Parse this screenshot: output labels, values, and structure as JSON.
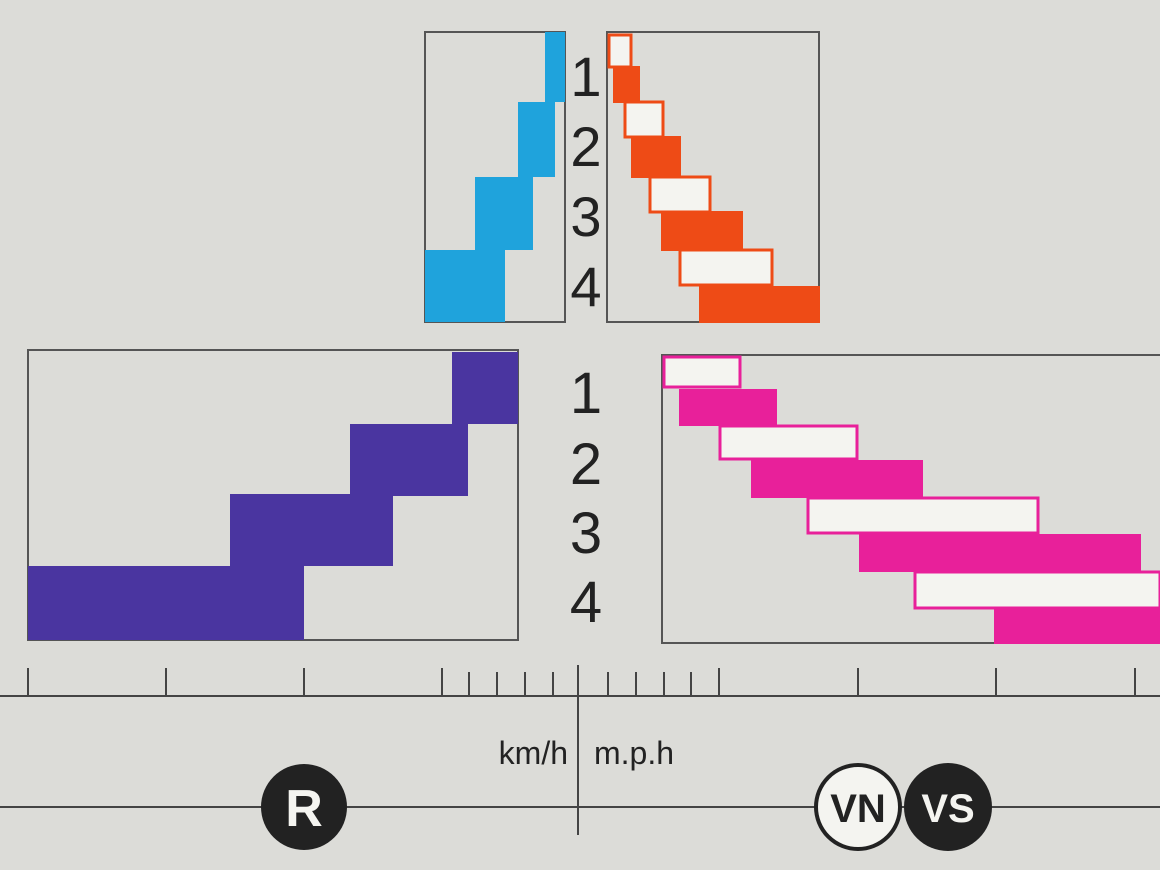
{
  "gear_labels": [
    "1",
    "2",
    "3",
    "4"
  ],
  "colors": {
    "background": "#dcdcd8",
    "frame": "#555555",
    "reverse_small": "#1fa3dc",
    "forward_small": "#ee4b16",
    "reverse_large": "#4a35a0",
    "forward_large": "#e8209a",
    "badge_dark": "#222222",
    "badge_light": "#f4f4f0"
  },
  "scale": {
    "left_unit": "km/h",
    "right_unit": "m.p.h"
  },
  "badges": {
    "reverse": "R",
    "vn": "VN",
    "vs": "VS"
  }
}
